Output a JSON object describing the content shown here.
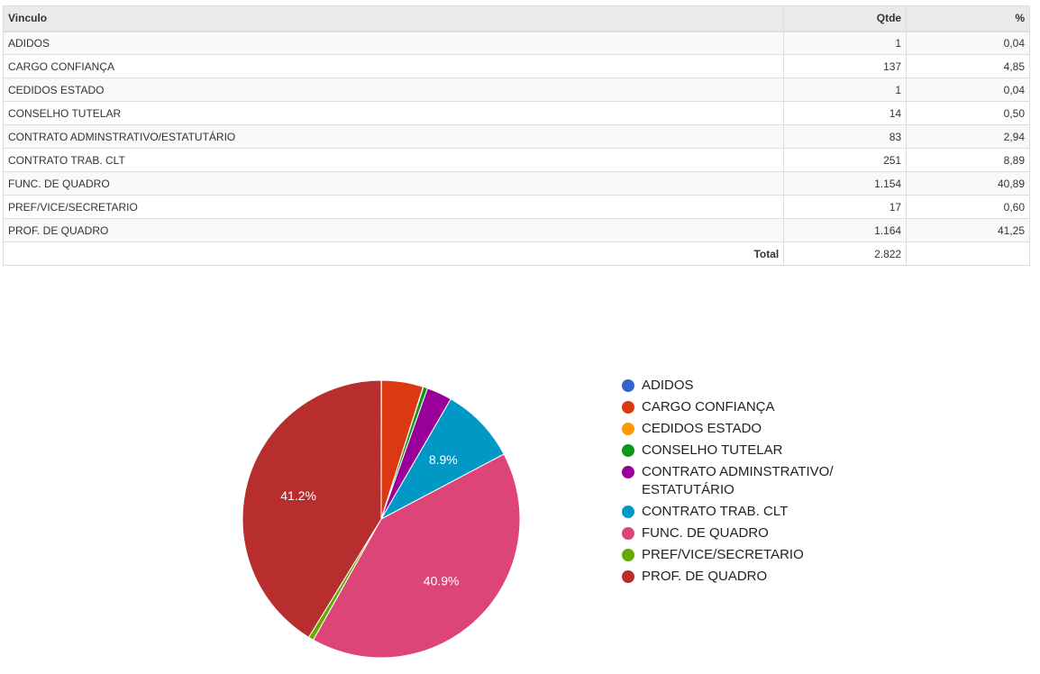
{
  "table": {
    "headers": {
      "vinculo": "Vinculo",
      "qtde": "Qtde",
      "pct": "%"
    },
    "rows": [
      {
        "vinculo": "ADIDOS",
        "qtde": "1",
        "pct": "0,04"
      },
      {
        "vinculo": "CARGO CONFIANÇA",
        "qtde": "137",
        "pct": "4,85"
      },
      {
        "vinculo": "CEDIDOS ESTADO",
        "qtde": "1",
        "pct": "0,04"
      },
      {
        "vinculo": "CONSELHO TUTELAR",
        "qtde": "14",
        "pct": "0,50"
      },
      {
        "vinculo": "CONTRATO ADMINSTRATIVO/ESTATUTÁRIO",
        "qtde": "83",
        "pct": "2,94"
      },
      {
        "vinculo": "CONTRATO TRAB. CLT",
        "qtde": "251",
        "pct": "8,89"
      },
      {
        "vinculo": "FUNC. DE QUADRO",
        "qtde": "1.154",
        "pct": "40,89"
      },
      {
        "vinculo": "PREF/VICE/SECRETARIO",
        "qtde": "17",
        "pct": "0,60"
      },
      {
        "vinculo": "PROF. DE QUADRO",
        "qtde": "1.164",
        "pct": "41,25"
      }
    ],
    "total_label": "Total",
    "total_qtde": "2.822"
  },
  "chart_data": {
    "type": "pie",
    "categories": [
      "ADIDOS",
      "CARGO CONFIANÇA",
      "CEDIDOS ESTADO",
      "CONSELHO TUTELAR",
      "CONTRATO ADMINSTRATIVO/ESTATUTÁRIO",
      "CONTRATO TRAB. CLT",
      "FUNC. DE QUADRO",
      "PREF/VICE/SECRETARIO",
      "PROF. DE QUADRO"
    ],
    "legend_lines": [
      [
        "ADIDOS"
      ],
      [
        "CARGO CONFIANÇA"
      ],
      [
        "CEDIDOS ESTADO"
      ],
      [
        "CONSELHO TUTELAR"
      ],
      [
        "CONTRATO ADMINSTRATIVO/",
        "ESTATUTÁRIO"
      ],
      [
        "CONTRATO TRAB. CLT"
      ],
      [
        "FUNC. DE QUADRO"
      ],
      [
        "PREF/VICE/SECRETARIO"
      ],
      [
        "PROF. DE QUADRO"
      ]
    ],
    "values": [
      1,
      137,
      1,
      14,
      83,
      251,
      1154,
      17,
      1164
    ],
    "colors": [
      "#3366cc",
      "#dc3912",
      "#ff9900",
      "#109618",
      "#990099",
      "#0099c6",
      "#dd4477",
      "#66aa00",
      "#b82e2e"
    ],
    "slice_labels": [
      "",
      "",
      "",
      "",
      "",
      "8.9%",
      "40.9%",
      "",
      "41.2%"
    ],
    "legend_position": "right"
  }
}
